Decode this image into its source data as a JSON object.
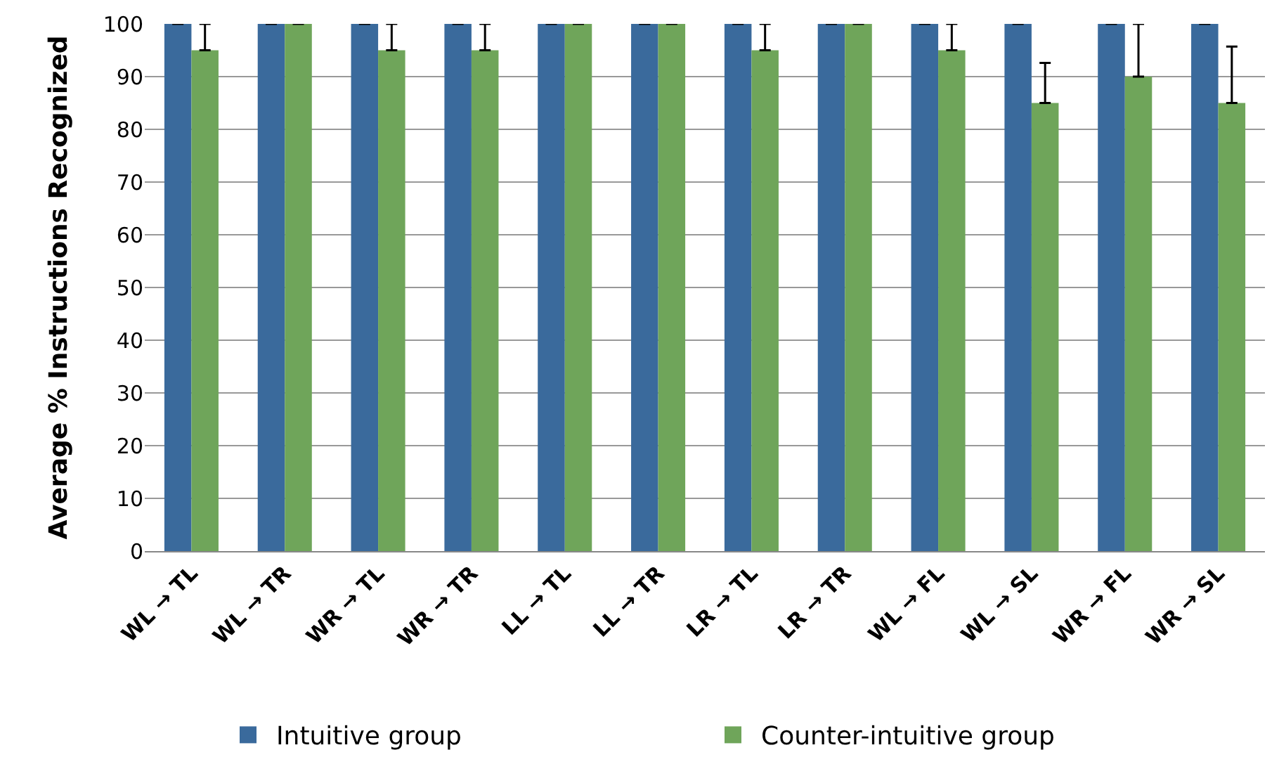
{
  "chart_data": {
    "type": "bar",
    "ylabel": "Average % Instructions Recognized",
    "categories": [
      "WL → TL",
      "WL → TR",
      "WR → TL",
      "WR → TR",
      "LL → TL",
      "LL → TR",
      "LR → TL",
      "LR → TR",
      "WL → FL",
      "WL → SL",
      "WR → FL",
      "WR → SL"
    ],
    "series": [
      {
        "name": "Intuitive group",
        "color": "#3a6a9c",
        "values": [
          100,
          100,
          100,
          100,
          100,
          100,
          100,
          100,
          100,
          100,
          100,
          100
        ],
        "errors": [
          [
            100,
            100
          ],
          [
            100,
            100
          ],
          [
            100,
            100
          ],
          [
            100,
            100
          ],
          [
            100,
            100
          ],
          [
            100,
            100
          ],
          [
            100,
            100
          ],
          [
            100,
            100
          ],
          [
            100,
            100
          ],
          [
            100,
            100
          ],
          [
            100,
            100
          ],
          [
            100,
            100
          ]
        ]
      },
      {
        "name": "Counter-intuitive group",
        "color": "#6fa55a",
        "values": [
          95,
          100,
          95,
          95,
          100,
          100,
          95,
          100,
          95,
          85,
          90,
          85
        ],
        "errors": [
          [
            95,
            100
          ],
          [
            100,
            100
          ],
          [
            95,
            100
          ],
          [
            95,
            100
          ],
          [
            100,
            100
          ],
          [
            100,
            100
          ],
          [
            95,
            100
          ],
          [
            100,
            100
          ],
          [
            95,
            100
          ],
          [
            85,
            92.6
          ],
          [
            90,
            100
          ],
          [
            85,
            95.7
          ]
        ]
      }
    ],
    "ylim": [
      0,
      100
    ],
    "yticks": [
      0,
      10,
      20,
      30,
      40,
      50,
      60,
      70,
      80,
      90,
      100
    ],
    "grid": "y",
    "legend": "bottom"
  }
}
